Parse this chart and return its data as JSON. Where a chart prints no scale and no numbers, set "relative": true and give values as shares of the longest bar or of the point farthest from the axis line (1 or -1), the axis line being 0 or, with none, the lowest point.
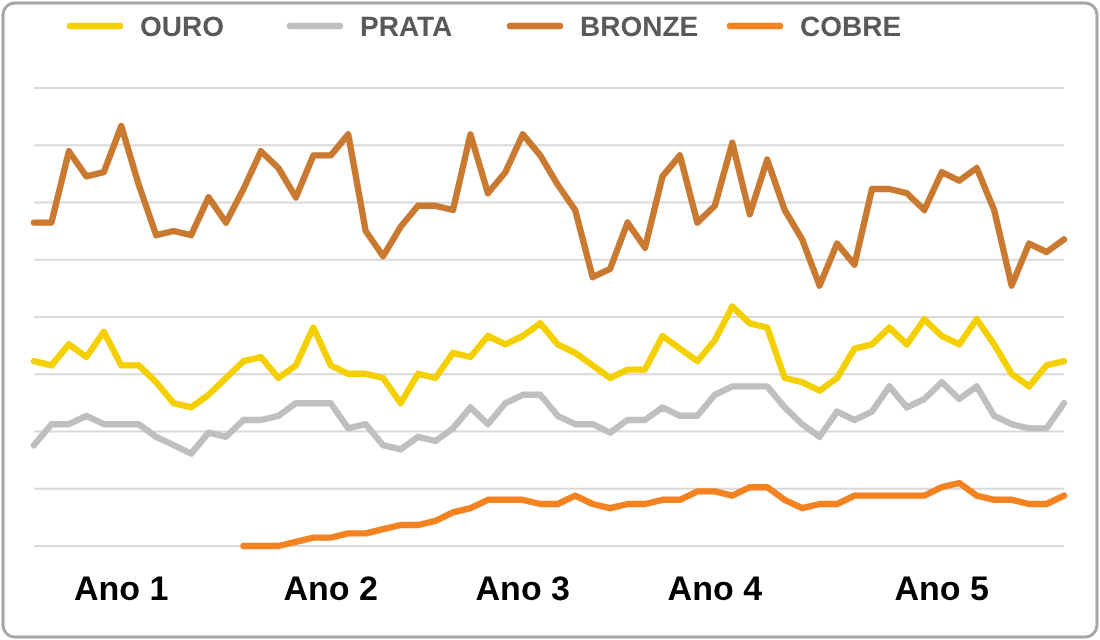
{
  "chart_data": {
    "type": "line",
    "relative": true,
    "grid": true,
    "legend": "top",
    "line_style": "solid",
    "categories": [
      null,
      null,
      null,
      null,
      null,
      "Ano 1",
      null,
      null,
      null,
      null,
      null,
      null,
      null,
      null,
      null,
      null,
      null,
      "Ano 2",
      null,
      null,
      null,
      null,
      null,
      null,
      null,
      null,
      null,
      null,
      "Ano 3",
      null,
      null,
      null,
      null,
      null,
      null,
      null,
      null,
      null,
      null,
      "Ano 4",
      null,
      null,
      null,
      null,
      null,
      null,
      null,
      null,
      null,
      null,
      null,
      null,
      "Ano 5",
      null,
      null,
      null,
      null,
      null,
      null,
      null
    ],
    "series": [
      {
        "name": "OURO",
        "color": "#f5d000",
        "values": [
          0.44,
          0.43,
          0.48,
          0.45,
          0.51,
          0.43,
          0.43,
          0.39,
          0.34,
          0.33,
          0.36,
          0.4,
          0.44,
          0.45,
          0.4,
          0.43,
          0.52,
          0.43,
          0.41,
          0.41,
          0.4,
          0.34,
          0.41,
          0.4,
          0.46,
          0.45,
          0.5,
          0.48,
          0.5,
          0.53,
          0.48,
          0.46,
          0.43,
          0.4,
          0.42,
          0.42,
          0.5,
          0.47,
          0.44,
          0.49,
          0.57,
          0.53,
          0.52,
          0.4,
          0.39,
          0.37,
          0.4,
          0.47,
          0.48,
          0.52,
          0.48,
          0.54,
          0.5,
          0.48,
          0.54,
          0.48,
          0.41,
          0.38,
          0.43,
          0.44
        ]
      },
      {
        "name": "PRATA",
        "color": "#bfbfbf",
        "values": [
          0.24,
          0.29,
          0.29,
          0.31,
          0.29,
          0.29,
          0.29,
          0.26,
          0.24,
          0.22,
          0.27,
          0.26,
          0.3,
          0.3,
          0.31,
          0.34,
          0.34,
          0.34,
          0.28,
          0.29,
          0.24,
          0.23,
          0.26,
          0.25,
          0.28,
          0.33,
          0.29,
          0.34,
          0.36,
          0.36,
          0.31,
          0.29,
          0.29,
          0.27,
          0.3,
          0.3,
          0.33,
          0.31,
          0.31,
          0.36,
          0.38,
          0.38,
          0.38,
          0.33,
          0.29,
          0.26,
          0.32,
          0.3,
          0.32,
          0.38,
          0.33,
          0.35,
          0.39,
          0.35,
          0.38,
          0.31,
          0.29,
          0.28,
          0.28,
          0.34
        ]
      },
      {
        "name": "BRONZE",
        "color": "#c97a30",
        "values": [
          0.77,
          0.77,
          0.94,
          0.88,
          0.89,
          1,
          0.86,
          0.74,
          0.75,
          0.74,
          0.83,
          0.77,
          0.85,
          0.94,
          0.9,
          0.83,
          0.93,
          0.93,
          0.98,
          0.75,
          0.69,
          0.76,
          0.81,
          0.81,
          0.8,
          0.98,
          0.84,
          0.89,
          0.98,
          0.93,
          0.86,
          0.8,
          0.64,
          0.66,
          0.77,
          0.71,
          0.88,
          0.93,
          0.77,
          0.81,
          0.96,
          0.79,
          0.92,
          0.8,
          0.73,
          0.62,
          0.72,
          0.67,
          0.85,
          0.85,
          0.84,
          0.8,
          0.89,
          0.87,
          0.9,
          0.8,
          0.62,
          0.72,
          0.7,
          0.73
        ]
      },
      {
        "name": "COBRE",
        "color": "#f58220",
        "values": [
          null,
          null,
          null,
          null,
          null,
          null,
          null,
          null,
          null,
          null,
          null,
          null,
          0,
          0,
          0,
          0.01,
          0.02,
          0.02,
          0.03,
          0.03,
          0.04,
          0.05,
          0.05,
          0.06,
          0.08,
          0.09,
          0.11,
          0.11,
          0.11,
          0.1,
          0.1,
          0.12,
          0.1,
          0.09,
          0.1,
          0.1,
          0.11,
          0.11,
          0.13,
          0.13,
          0.12,
          0.14,
          0.14,
          0.11,
          0.09,
          0.1,
          0.1,
          0.12,
          0.12,
          0.12,
          0.12,
          0.12,
          0.14,
          0.15,
          0.12,
          0.11,
          0.11,
          0.1,
          0.1,
          0.12
        ]
      }
    ]
  }
}
